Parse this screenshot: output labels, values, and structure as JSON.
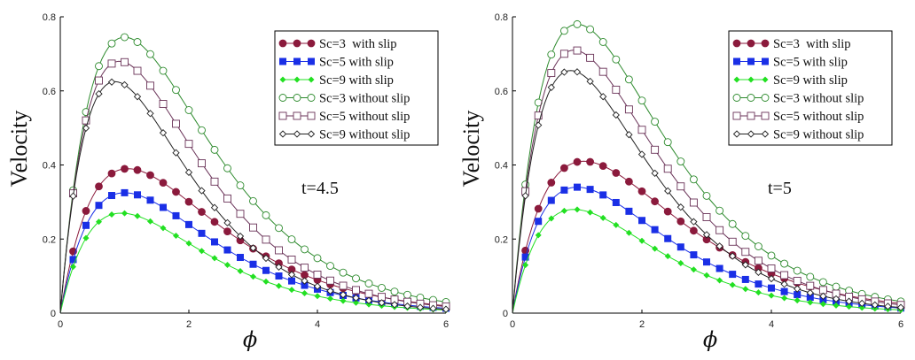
{
  "chart_data": [
    {
      "type": "line",
      "annotation": "t=4.5",
      "xlabel": "ϕ",
      "ylabel": "Velocity",
      "xlim": [
        0,
        6
      ],
      "ylim": [
        0,
        0.8
      ],
      "xticks": [
        "0",
        "2",
        "4",
        "6"
      ],
      "yticks": [
        "0",
        "0.2",
        "0.4",
        "0.6",
        "0.8"
      ],
      "legend_position": "top-right",
      "series": [
        {
          "name": "Sc=3  with slip",
          "peak_x": 1.05,
          "peak_y": 0.39,
          "marker": "filled-circle",
          "color": "#8b1a3c"
        },
        {
          "name": "Sc=5 with slip",
          "peak_x": 1.0,
          "peak_y": 0.325,
          "marker": "filled-square",
          "color": "#1a2fe6"
        },
        {
          "name": "Sc=9 with slip",
          "peak_x": 0.95,
          "peak_y": 0.27,
          "marker": "filled-diamond",
          "color": "#22e022"
        },
        {
          "name": "Sc=3 without slip",
          "peak_x": 1.0,
          "peak_y": 0.745,
          "marker": "open-circle",
          "color": "#2e8b2e"
        },
        {
          "name": "Sc=5 without slip",
          "peak_x": 0.92,
          "peak_y": 0.68,
          "marker": "open-square",
          "color": "#6a3358"
        },
        {
          "name": "Sc=9 without slip",
          "peak_x": 0.85,
          "peak_y": 0.625,
          "marker": "open-diamond",
          "color": "#222222"
        }
      ]
    },
    {
      "type": "line",
      "annotation": "t=5",
      "xlabel": "ϕ",
      "ylabel": "Velocity",
      "xlim": [
        0,
        6
      ],
      "ylim": [
        0,
        0.8
      ],
      "xticks": [
        "0",
        "2",
        "4",
        "6"
      ],
      "yticks": [
        "0",
        "0.2",
        "0.4",
        "0.6",
        "0.8"
      ],
      "legend_position": "top-right",
      "series": [
        {
          "name": "Sc=3  with slip",
          "peak_x": 1.1,
          "peak_y": 0.41,
          "marker": "filled-circle",
          "color": "#8b1a3c"
        },
        {
          "name": "Sc=5 with slip",
          "peak_x": 1.0,
          "peak_y": 0.34,
          "marker": "filled-square",
          "color": "#1a2fe6"
        },
        {
          "name": "Sc=9 with slip",
          "peak_x": 0.95,
          "peak_y": 0.28,
          "marker": "filled-diamond",
          "color": "#22e022"
        },
        {
          "name": "Sc=3 without slip",
          "peak_x": 1.0,
          "peak_y": 0.78,
          "marker": "open-circle",
          "color": "#2e8b2e"
        },
        {
          "name": "Sc=5 without slip",
          "peak_x": 0.95,
          "peak_y": 0.71,
          "marker": "open-square",
          "color": "#6a3358"
        },
        {
          "name": "Sc=9 without slip",
          "peak_x": 0.9,
          "peak_y": 0.655,
          "marker": "open-diamond",
          "color": "#222222"
        }
      ]
    }
  ]
}
